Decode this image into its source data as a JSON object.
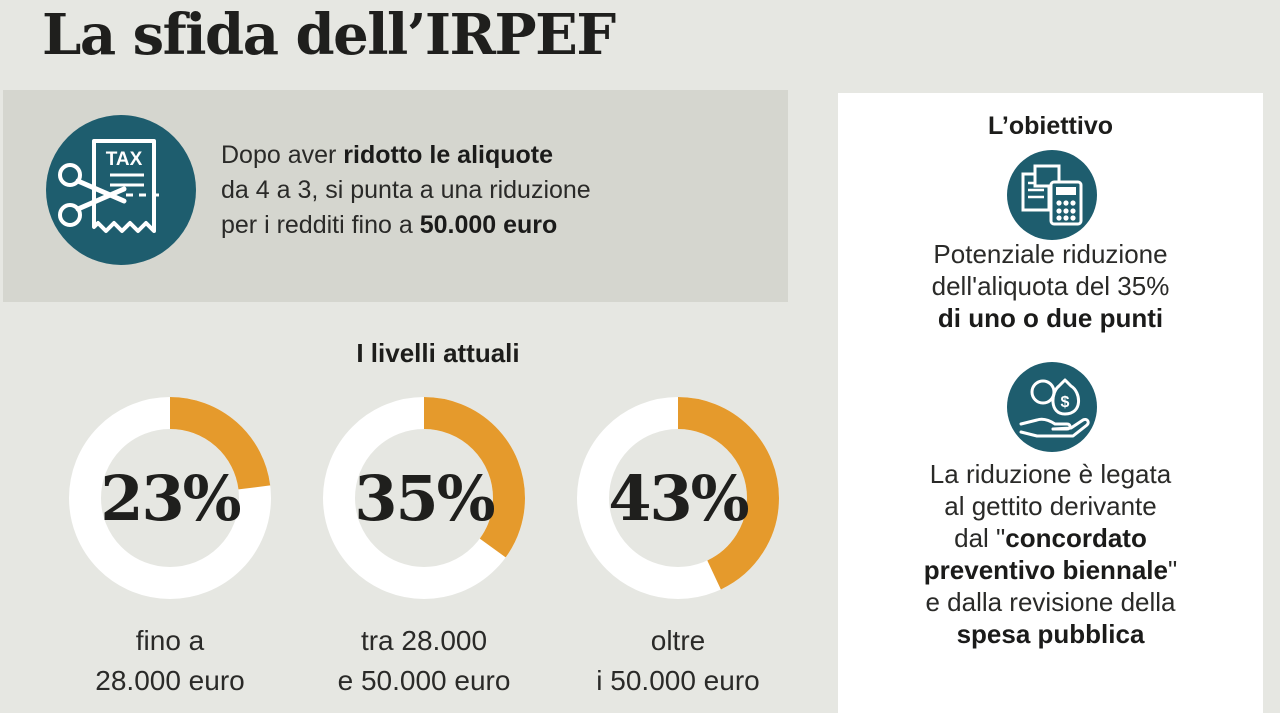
{
  "title": "La sfida dell’IRPEF",
  "intro": {
    "tax_label": "TAX",
    "line1_a": "Dopo aver ",
    "line1_b": "ridotto le aliquote",
    "line2": "da 4 a 3, si punta a una riduzione",
    "line3_a": "per i redditi fino a ",
    "line3_b": "50.000 euro"
  },
  "levels": {
    "title": "I livelli attuali",
    "items": [
      {
        "rate": "23%",
        "share": 0.23,
        "label_1": "fino a",
        "label_2": "28.000 euro"
      },
      {
        "rate": "35%",
        "share": 0.35,
        "label_1": "tra 28.000",
        "label_2": "e 50.000 euro"
      },
      {
        "rate": "43%",
        "share": 0.43,
        "label_1": "oltre",
        "label_2": "i 50.000 euro"
      }
    ]
  },
  "objective": {
    "title": "L’obiettivo",
    "block1": {
      "line1": "Potenziale riduzione",
      "line2": "dell'aliquota del 35%",
      "line3": "di uno o due punti"
    },
    "block2": {
      "line1": "La riduzione è legata",
      "line2": "al gettito derivante",
      "line3_a": "dal \"",
      "line3_b": "concordato",
      "line4_b": "preventivo biennale",
      "line4_c": "\"",
      "line5": "e dalla revisione della",
      "line6": "spesa pubblica"
    }
  },
  "colors": {
    "accent": "#e59a2c",
    "teal": "#1e5d6e",
    "ring_track": "#ffffff",
    "background": "#e6e7e2",
    "panel": "#d5d6cf"
  },
  "icons": [
    "tax-receipt-scissors-icon",
    "calculator-documents-icon",
    "hand-money-bag-icon"
  ]
}
